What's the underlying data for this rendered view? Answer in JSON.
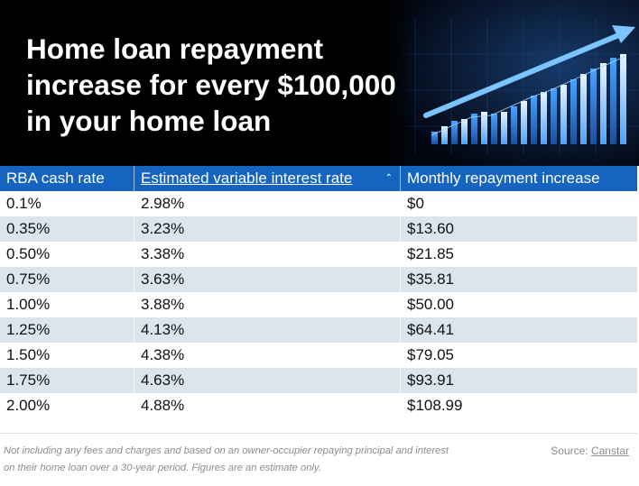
{
  "header": {
    "title_lines": [
      "Home loan repayment",
      "increase for every $100,000",
      "in your home loan"
    ],
    "image_icon": "rising-bar-chart-arrow-icon"
  },
  "table": {
    "columns": [
      {
        "label": "RBA cash rate"
      },
      {
        "label": "Estimated variable interest rate",
        "sort_icon": "sort-updown-icon"
      },
      {
        "label": "Monthly repayment increase"
      }
    ],
    "rows": [
      [
        "0.1%",
        "2.98%",
        "$0"
      ],
      [
        "0.35%",
        "3.23%",
        "$13.60"
      ],
      [
        "0.50%",
        "3.38%",
        "$21.85"
      ],
      [
        "0.75%",
        "3.63%",
        "$35.81"
      ],
      [
        "1.00%",
        "3.88%",
        "$50.00"
      ],
      [
        "1.25%",
        "4.13%",
        "$64.41"
      ],
      [
        "1.50%",
        "4.38%",
        "$79.05"
      ],
      [
        "1.75%",
        "4.63%",
        "$93.91"
      ],
      [
        "2.00%",
        "4.88%",
        "$108.99"
      ]
    ]
  },
  "footer": {
    "footnote": "Not including any fees and charges and based on an owner-occupier repaying principal and interest on their home loan over a 30-year period. Figures are an estimate only.",
    "source_prefix": "Source: ",
    "source_link": "Canstar"
  },
  "colors": {
    "header_bg": "#1565c0",
    "stripe": "#dae5ed",
    "hero_bg": "#000000",
    "title": "#ffffff",
    "muted": "#8c8c8c"
  }
}
